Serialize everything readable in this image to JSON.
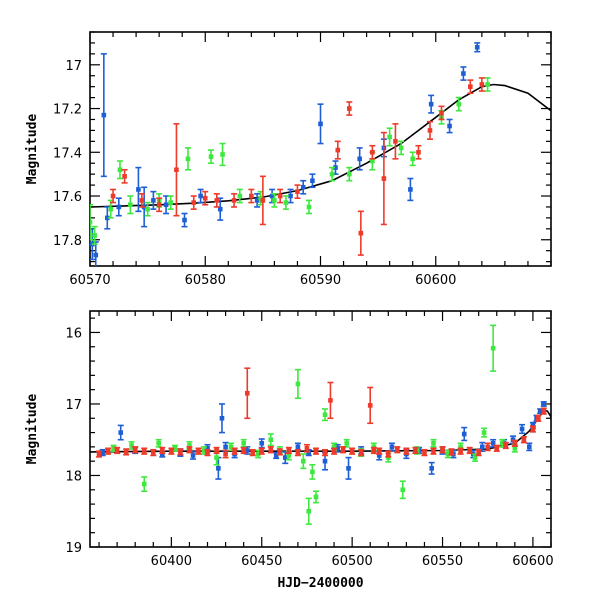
{
  "chart_data": [
    {
      "type": "scatter",
      "title": "",
      "xlabel": "",
      "ylabel": "Magnitude",
      "xlim": [
        60570,
        60610
      ],
      "ylim": [
        17.92,
        16.85
      ],
      "y_inverted": true,
      "xticks": [
        60570,
        60580,
        60590,
        60600
      ],
      "yticks": [
        17,
        17.2,
        17.4,
        17.6,
        17.8
      ],
      "ytick_labels": [
        "17",
        "17.2",
        "17.4",
        "17.6",
        "17.8"
      ],
      "grid": false,
      "colors": {
        "blue": "#1f5fd6",
        "green": "#3ee83e",
        "red": "#ee3a2a",
        "model": "#000000"
      },
      "model_curve": {
        "name": "",
        "x": [
          60570,
          60573,
          60576,
          60579,
          60582,
          60585,
          60588,
          60591,
          60594,
          60597,
          60600,
          60602,
          60604,
          60605,
          60606,
          60608,
          60610
        ],
        "y": [
          17.65,
          17.645,
          17.64,
          17.633,
          17.622,
          17.605,
          17.575,
          17.53,
          17.45,
          17.36,
          17.24,
          17.16,
          17.1,
          17.09,
          17.095,
          17.13,
          17.21
        ]
      },
      "series": [
        {
          "name": "",
          "color": "blue",
          "x": [
            60570.2,
            60570.5,
            60571.2,
            60571.5,
            60572.5,
            60574.2,
            60574.7,
            60575.5,
            60576.6,
            60578.2,
            60579.6,
            60581.3,
            60584.5,
            60585.8,
            60587.4,
            60588.5,
            60589.3,
            60590.0,
            60591.3,
            60593.4,
            60595.5,
            60597.8,
            60599.6,
            60601.2,
            60602.4,
            60603.6
          ],
          "y": [
            17.82,
            17.87,
            17.23,
            17.7,
            17.65,
            17.57,
            17.65,
            17.62,
            17.64,
            17.71,
            17.6,
            17.66,
            17.62,
            17.6,
            17.6,
            17.56,
            17.53,
            17.27,
            17.47,
            17.43,
            17.38,
            17.57,
            17.18,
            17.28,
            17.04,
            16.92
          ],
          "err": [
            0.07,
            0.06,
            0.28,
            0.05,
            0.04,
            0.1,
            0.09,
            0.04,
            0.04,
            0.03,
            0.03,
            0.05,
            0.03,
            0.03,
            0.03,
            0.03,
            0.03,
            0.09,
            0.03,
            0.05,
            0.04,
            0.05,
            0.04,
            0.03,
            0.03,
            0.02
          ]
        },
        {
          "name": "",
          "color": "green",
          "x": [
            60570.0,
            60570.4,
            60571.8,
            60572.6,
            60573.5,
            60575.0,
            60576.0,
            60577.0,
            60578.5,
            60580.5,
            60581.5,
            60583.0,
            60584.8,
            60586.0,
            60587.0,
            60589.0,
            60591.0,
            60592.5,
            60594.5,
            60596.0,
            60597.0,
            60598.0,
            60600.5,
            60602.0,
            60604.5
          ],
          "y": [
            17.72,
            17.78,
            17.66,
            17.48,
            17.64,
            17.66,
            17.62,
            17.63,
            17.43,
            17.42,
            17.41,
            17.6,
            17.61,
            17.62,
            17.63,
            17.65,
            17.5,
            17.5,
            17.44,
            17.33,
            17.38,
            17.43,
            17.24,
            17.18,
            17.09
          ],
          "err": [
            0.08,
            0.04,
            0.04,
            0.04,
            0.04,
            0.03,
            0.03,
            0.03,
            0.05,
            0.03,
            0.05,
            0.03,
            0.03,
            0.03,
            0.03,
            0.03,
            0.03,
            0.03,
            0.04,
            0.04,
            0.03,
            0.03,
            0.03,
            0.03,
            0.03
          ]
        },
        {
          "name": "",
          "color": "red",
          "x": [
            60572.0,
            60573.0,
            60574.5,
            60576.0,
            60577.5,
            60579.0,
            60580.0,
            60581.0,
            60582.5,
            60584.0,
            60585.0,
            60586.5,
            60588.0,
            60591.5,
            60592.5,
            60593.5,
            60594.5,
            60595.5,
            60596.5,
            60598.5,
            60599.5,
            60600.5,
            60603.0,
            60604.0
          ],
          "y": [
            17.6,
            17.51,
            17.62,
            17.64,
            17.48,
            17.63,
            17.61,
            17.62,
            17.62,
            17.6,
            17.62,
            17.6,
            17.58,
            17.39,
            17.2,
            17.77,
            17.4,
            17.52,
            17.35,
            17.4,
            17.3,
            17.22,
            17.1,
            17.09
          ],
          "err": [
            0.03,
            0.03,
            0.03,
            0.03,
            0.21,
            0.03,
            0.03,
            0.03,
            0.03,
            0.03,
            0.11,
            0.03,
            0.03,
            0.04,
            0.03,
            0.1,
            0.03,
            0.21,
            0.08,
            0.03,
            0.04,
            0.03,
            0.03,
            0.03
          ]
        }
      ]
    },
    {
      "type": "scatter",
      "title": "",
      "xlabel": "HJD−2400000",
      "ylabel": "Magnitude",
      "xlim": [
        60355,
        60610
      ],
      "ylim": [
        19,
        15.7
      ],
      "y_inverted": true,
      "xticks": [
        60400,
        60450,
        60500,
        60550,
        60600
      ],
      "yticks": [
        16,
        17,
        18,
        19
      ],
      "ytick_labels": [
        "16",
        "17",
        "18",
        "19"
      ],
      "grid": false,
      "colors": {
        "blue": "#1f5fd6",
        "green": "#3ee83e",
        "red": "#ee3a2a",
        "model": "#000000"
      },
      "model_curve": {
        "name": "",
        "x": [
          60355,
          60400,
          60450,
          60500,
          60550,
          60575,
          60590,
          60598,
          60603,
          60606,
          60608,
          60610
        ],
        "y": [
          17.67,
          17.66,
          17.66,
          17.66,
          17.65,
          17.63,
          17.55,
          17.38,
          17.2,
          17.09,
          17.1,
          17.18
        ]
      },
      "series": [
        {
          "name": "",
          "color": "blue",
          "x": [
            60362,
            60372,
            60380,
            60395,
            60405,
            60412,
            60420,
            60426,
            60428,
            60430,
            60435,
            60442,
            60450,
            60458,
            60463,
            60470,
            60476,
            60485,
            60492,
            60498,
            60505,
            60515,
            60522,
            60530,
            60537,
            60544,
            60550,
            60556,
            60562,
            60567,
            60572,
            60578,
            60584,
            60589,
            60594,
            60598,
            60600,
            60602,
            60604,
            60606
          ],
          "y": [
            17.68,
            17.4,
            17.65,
            17.7,
            17.68,
            17.72,
            17.62,
            17.9,
            17.2,
            17.6,
            17.7,
            17.65,
            17.55,
            17.72,
            17.75,
            17.6,
            17.68,
            17.8,
            17.62,
            17.9,
            17.65,
            17.72,
            17.6,
            17.7,
            17.65,
            17.9,
            17.65,
            17.7,
            17.42,
            17.7,
            17.6,
            17.55,
            17.55,
            17.5,
            17.35,
            17.6,
            17.3,
            17.2,
            17.1,
            17.0
          ],
          "err": [
            0.04,
            0.1,
            0.04,
            0.04,
            0.05,
            0.05,
            0.05,
            0.15,
            0.2,
            0.06,
            0.05,
            0.05,
            0.06,
            0.04,
            0.08,
            0.05,
            0.04,
            0.12,
            0.05,
            0.15,
            0.05,
            0.06,
            0.05,
            0.06,
            0.04,
            0.08,
            0.05,
            0.05,
            0.09,
            0.05,
            0.06,
            0.05,
            0.05,
            0.05,
            0.06,
            0.05,
            0.04,
            0.04,
            0.03,
            0.03
          ]
        },
        {
          "name": "",
          "color": "green",
          "x": [
            60368,
            60378,
            60385,
            60393,
            60402,
            60410,
            60418,
            60425,
            60433,
            60440,
            60448,
            60455,
            60460,
            60465,
            60470,
            60473,
            60476,
            60478,
            60480,
            60485,
            60490,
            60497,
            60505,
            60512,
            60520,
            60528,
            60536,
            60545,
            60553,
            60560,
            60568,
            60573,
            60578,
            60583,
            60590
          ],
          "y": [
            17.62,
            17.58,
            18.12,
            17.55,
            17.62,
            17.58,
            17.65,
            17.75,
            17.6,
            17.55,
            17.7,
            17.5,
            17.65,
            17.72,
            16.72,
            17.8,
            18.5,
            17.95,
            18.3,
            17.15,
            17.6,
            17.55,
            17.68,
            17.6,
            17.75,
            18.2,
            17.65,
            17.55,
            17.7,
            17.6,
            17.75,
            17.4,
            16.22,
            17.55,
            17.62
          ],
          "err": [
            0.04,
            0.05,
            0.1,
            0.05,
            0.04,
            0.05,
            0.05,
            0.1,
            0.05,
            0.05,
            0.05,
            0.08,
            0.05,
            0.06,
            0.2,
            0.1,
            0.18,
            0.1,
            0.08,
            0.08,
            0.05,
            0.05,
            0.05,
            0.05,
            0.06,
            0.12,
            0.05,
            0.05,
            0.05,
            0.05,
            0.05,
            0.06,
            0.32,
            0.05,
            0.05
          ]
        },
        {
          "name": "",
          "color": "red",
          "x": [
            60360,
            60365,
            60370,
            60375,
            60380,
            60385,
            60390,
            60395,
            60400,
            60405,
            60410,
            60415,
            60420,
            60425,
            60430,
            60435,
            60440,
            60442,
            60445,
            60450,
            60455,
            60460,
            60465,
            60470,
            60475,
            60480,
            60485,
            60488,
            60490,
            60495,
            60500,
            60505,
            60510,
            60512,
            60515,
            60520,
            60525,
            60530,
            60535,
            60540,
            60545,
            60550,
            60555,
            60560,
            60565,
            60570,
            60575,
            60580,
            60585,
            60590,
            60595,
            60600,
            60603,
            60606
          ],
          "y": [
            17.7,
            17.66,
            17.65,
            17.67,
            17.64,
            17.66,
            17.68,
            17.65,
            17.66,
            17.67,
            17.64,
            17.66,
            17.68,
            17.65,
            17.7,
            17.66,
            17.65,
            16.85,
            17.68,
            17.66,
            17.64,
            17.67,
            17.65,
            17.68,
            17.62,
            17.66,
            17.68,
            16.95,
            17.66,
            17.64,
            17.66,
            17.68,
            17.02,
            17.65,
            17.66,
            17.7,
            17.64,
            17.66,
            17.65,
            17.68,
            17.66,
            17.64,
            17.67,
            17.66,
            17.65,
            17.68,
            17.6,
            17.62,
            17.58,
            17.55,
            17.5,
            17.35,
            17.2,
            17.1
          ],
          "err": [
            0.04,
            0.04,
            0.04,
            0.04,
            0.04,
            0.04,
            0.04,
            0.04,
            0.04,
            0.04,
            0.04,
            0.04,
            0.04,
            0.04,
            0.05,
            0.04,
            0.04,
            0.35,
            0.04,
            0.04,
            0.04,
            0.04,
            0.04,
            0.04,
            0.05,
            0.04,
            0.04,
            0.25,
            0.04,
            0.04,
            0.04,
            0.04,
            0.25,
            0.04,
            0.04,
            0.04,
            0.04,
            0.04,
            0.04,
            0.04,
            0.04,
            0.04,
            0.04,
            0.04,
            0.04,
            0.04,
            0.05,
            0.04,
            0.04,
            0.04,
            0.04,
            0.04,
            0.04,
            0.04
          ]
        }
      ]
    }
  ]
}
